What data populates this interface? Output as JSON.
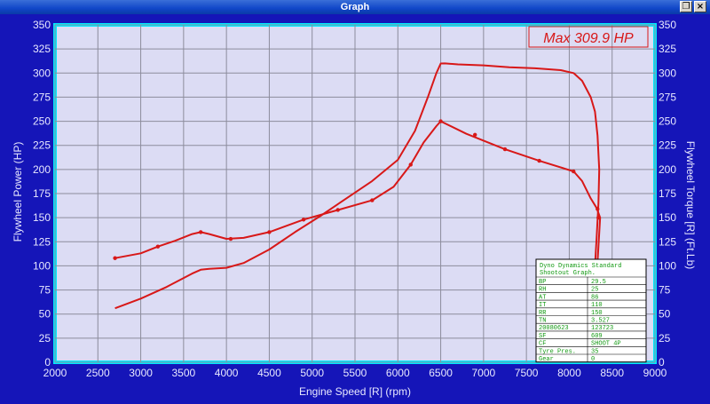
{
  "window": {
    "title": "Graph",
    "restore_glyph": "❐",
    "close_glyph": "×"
  },
  "colors": {
    "background": "#1515b8",
    "plot": "#dcdcf4",
    "grid": "#8c8c9c",
    "border": "#00e8ff",
    "curve": "#d81818",
    "axis_text": "#e8e8ff"
  },
  "chart_data": {
    "type": "line",
    "title": "Max 309.9 HP",
    "xlabel": "Engine Speed [R] (rpm)",
    "ylabel": "Flywheel Power (HP)",
    "y2label": "Flywheel Torque [R] (Ft.Lb)",
    "xlim": [
      2000,
      9000
    ],
    "ylim": [
      0,
      350
    ],
    "y2lim": [
      0,
      350
    ],
    "grid": true,
    "x_ticks": [
      2000,
      2500,
      3000,
      3500,
      4000,
      4500,
      5000,
      5500,
      6000,
      6500,
      7000,
      7500,
      8000,
      8500,
      9000
    ],
    "y_ticks": [
      0,
      25,
      50,
      75,
      100,
      125,
      150,
      175,
      200,
      225,
      250,
      275,
      300,
      325,
      350
    ],
    "series": [
      {
        "x": [
          2700,
          3000,
          3300,
          3600,
          3700,
          3800,
          4000,
          4200,
          4500,
          4800,
          5100,
          5400,
          5700,
          6000,
          6200,
          6350,
          6450,
          6500,
          6550,
          6700,
          7000,
          7300,
          7600,
          7900,
          8050,
          8150,
          8250,
          8300,
          8330,
          8350,
          8340,
          8320,
          8300,
          8280
        ],
        "y": [
          56,
          66,
          78,
          92,
          96,
          97,
          98,
          103,
          117,
          135,
          152,
          170,
          188,
          210,
          240,
          275,
          300,
          309.9,
          310,
          309,
          308,
          306,
          305,
          303,
          300,
          292,
          275,
          260,
          235,
          200,
          165,
          130,
          100,
          0
        ]
      },
      {
        "x": [
          2700,
          3000,
          3200,
          3400,
          3600,
          3700,
          3800,
          4000,
          4200,
          4500,
          4900,
          5300,
          5700,
          5950,
          6150,
          6300,
          6450,
          6500,
          6800,
          7250,
          7650,
          8050,
          8150,
          8250,
          8320,
          8360,
          8340,
          8300,
          8270
        ],
        "y": [
          108,
          113,
          120,
          126,
          133,
          135,
          133,
          128,
          129,
          135,
          148,
          158,
          168,
          182,
          205,
          228,
          245,
          250,
          237,
          221,
          209,
          198,
          188,
          170,
          160,
          150,
          120,
          60,
          0
        ]
      }
    ],
    "markers": [
      {
        "series": 0,
        "points": []
      },
      {
        "series": 1,
        "points": [
          [
            2700,
            108
          ],
          [
            3200,
            120
          ],
          [
            3700,
            135
          ],
          [
            4050,
            128
          ],
          [
            4500,
            135
          ],
          [
            4900,
            148
          ],
          [
            5300,
            158
          ],
          [
            5700,
            168
          ],
          [
            6150,
            205
          ],
          [
            6500,
            250
          ],
          [
            6900,
            236
          ],
          [
            7250,
            221
          ],
          [
            7650,
            209
          ],
          [
            8050,
            198
          ],
          [
            8330,
            159
          ],
          [
            8340,
            150
          ]
        ]
      }
    ]
  },
  "info_table": {
    "title_line1": "Dyno Dynamics Standard",
    "title_line2": "Shootout Graph.",
    "rows": [
      [
        "BP",
        "29.5"
      ],
      [
        "RH",
        "25"
      ],
      [
        "AT",
        "86"
      ],
      [
        "IT",
        "110"
      ],
      [
        "RR",
        "150"
      ],
      [
        "TN",
        "3.527"
      ],
      [
        "20080623",
        "123723"
      ],
      [
        "SF",
        "609"
      ],
      [
        "CF",
        "SHOOT 4P"
      ],
      [
        "Tyre Pres.",
        "35"
      ],
      [
        "Gear",
        "0"
      ]
    ]
  }
}
